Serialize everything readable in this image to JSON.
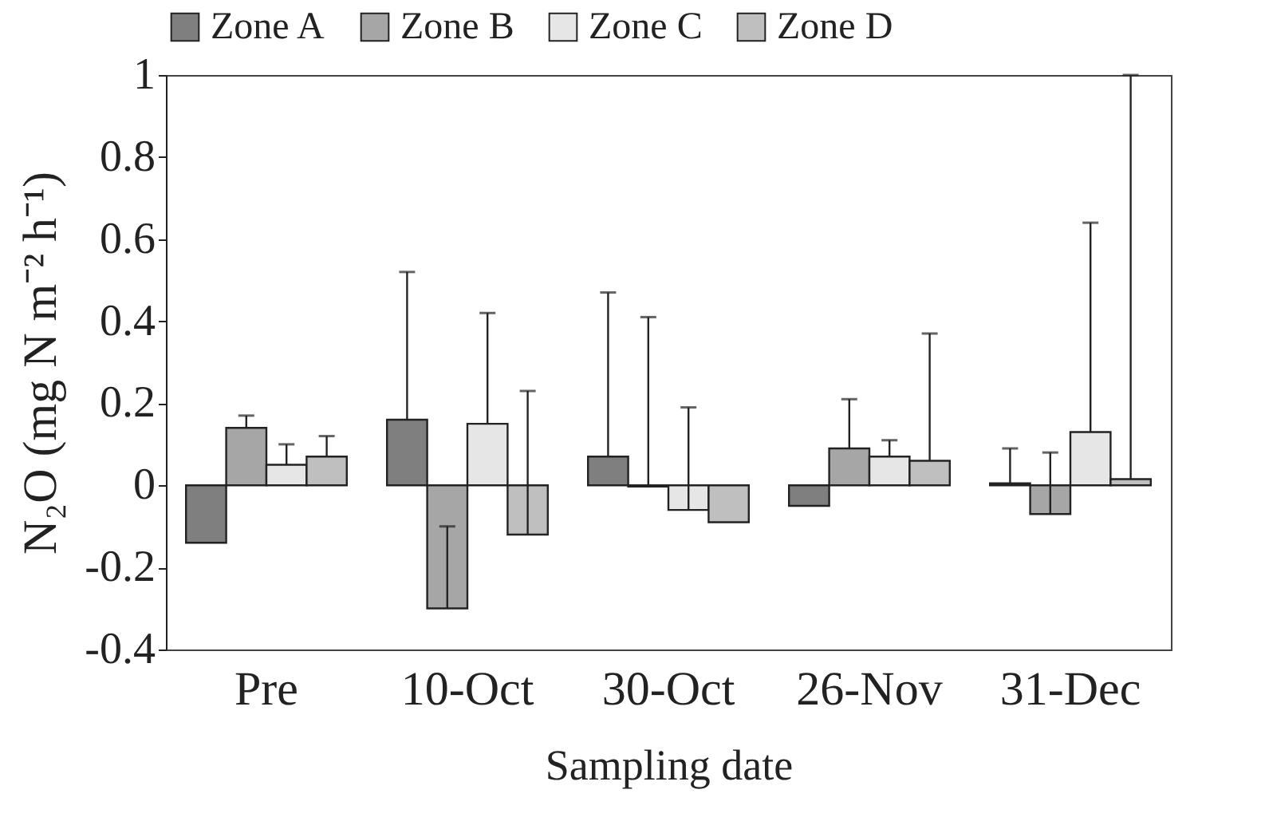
{
  "chart_data": {
    "type": "bar",
    "xlabel": "Sampling date",
    "ylabel": "N₂O (mg N m⁻² h⁻¹)",
    "categories": [
      "Pre",
      "10-Oct",
      "30-Oct",
      "26-Nov",
      "31-Dec"
    ],
    "series": [
      {
        "name": "Zone A",
        "color": "#7f7f7f",
        "values": [
          -0.14,
          0.16,
          0.07,
          -0.05,
          0.005
        ],
        "errors": [
          null,
          [
            0.16,
            0.52
          ],
          [
            0.07,
            0.47
          ],
          null,
          [
            0.005,
            0.09
          ]
        ]
      },
      {
        "name": "Zone B",
        "color": "#a6a6a6",
        "values": [
          0.14,
          -0.3,
          -0.003,
          0.09,
          -0.07
        ],
        "errors": [
          [
            0.14,
            0.17
          ],
          [
            -0.3,
            -0.1
          ],
          [
            -0.003,
            0.41
          ],
          [
            0.09,
            0.21
          ],
          [
            -0.07,
            0.08
          ]
        ]
      },
      {
        "name": "Zone C",
        "color": "#e6e6e6",
        "values": [
          0.05,
          0.15,
          -0.06,
          0.07,
          0.13
        ],
        "errors": [
          [
            0.05,
            0.1
          ],
          [
            0.15,
            0.42
          ],
          [
            -0.06,
            0.19
          ],
          [
            0.07,
            0.11
          ],
          [
            0.13,
            0.64
          ]
        ]
      },
      {
        "name": "Zone D",
        "color": "#bfbfbf",
        "values": [
          0.07,
          -0.12,
          -0.09,
          0.06,
          0.015
        ],
        "errors": [
          [
            0.07,
            0.12
          ],
          [
            -0.12,
            0.23
          ],
          null,
          [
            0.06,
            0.37
          ],
          [
            0.015,
            1.0
          ]
        ]
      }
    ],
    "ylim": [
      -0.4,
      1
    ],
    "yticks": [
      -0.4,
      -0.2,
      0,
      0.2,
      0.4,
      0.6,
      0.8,
      1
    ],
    "grid": false,
    "legend": "top"
  }
}
